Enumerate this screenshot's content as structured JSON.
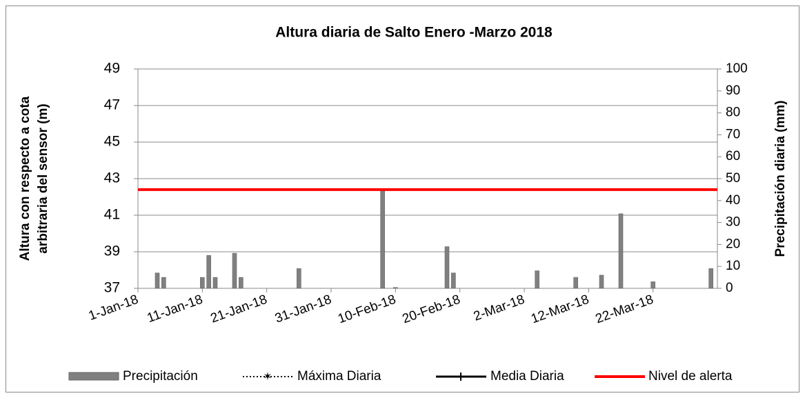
{
  "chart_data": {
    "type": "bar",
    "title": "Altura diaria de Salto Enero -Marzo 2018",
    "y_label": "Altura con respecto a cota arbitraria del sensor (m)",
    "y2_label": "Precipitación diaria (mm)",
    "xlim": [
      "2018-01-01",
      "2018-04-01"
    ],
    "xticks": [
      {
        "value": "2018-01-01",
        "label": "1-Jan-18"
      },
      {
        "value": "2018-01-11",
        "label": "11-Jan-18"
      },
      {
        "value": "2018-01-21",
        "label": "21-Jan-18"
      },
      {
        "value": "2018-01-31",
        "label": "31-Jan-18"
      },
      {
        "value": "2018-02-10",
        "label": "10-Feb-18"
      },
      {
        "value": "2018-02-20",
        "label": "20-Feb-18"
      },
      {
        "value": "2018-03-02",
        "label": "2-Mar-18"
      },
      {
        "value": "2018-03-12",
        "label": "12-Mar-18"
      },
      {
        "value": "2018-03-22",
        "label": "22-Mar-18"
      }
    ],
    "ylim": [
      37,
      49
    ],
    "yticks": [
      37,
      39,
      41,
      43,
      45,
      47,
      49
    ],
    "y2lim": [
      0,
      100
    ],
    "y2ticks": [
      0,
      10,
      20,
      30,
      40,
      50,
      60,
      70,
      80,
      90,
      100
    ],
    "grid": true,
    "legend": "bottom",
    "series": [
      {
        "name": "Precipitación",
        "type": "bar",
        "axis": "y2",
        "color": "#808080",
        "x": [
          "2018-01-04",
          "2018-01-05",
          "2018-01-11",
          "2018-01-12",
          "2018-01-13",
          "2018-01-16",
          "2018-01-17",
          "2018-01-26",
          "2018-02-08",
          "2018-02-10",
          "2018-02-18",
          "2018-02-19",
          "2018-03-04",
          "2018-03-10",
          "2018-03-14",
          "2018-03-17",
          "2018-03-22",
          "2018-03-31"
        ],
        "values": [
          7,
          5,
          5,
          15,
          5,
          16,
          5,
          9,
          45,
          0.4,
          19,
          7,
          8,
          5,
          6,
          34,
          3,
          9
        ]
      },
      {
        "name": "Máxima Diaria",
        "type": "line",
        "axis": "y",
        "color": "#000000",
        "style": "dotted",
        "x": [],
        "values": []
      },
      {
        "name": "Media Diaria",
        "type": "line",
        "axis": "y",
        "color": "#000000",
        "style": "solid",
        "x": [],
        "values": []
      },
      {
        "name": "Nivel de alerta",
        "type": "line",
        "axis": "y",
        "color": "#ff0000",
        "style": "solid",
        "x": [
          "2018-01-01",
          "2018-04-01"
        ],
        "values": [
          42.4,
          42.4
        ]
      }
    ]
  }
}
